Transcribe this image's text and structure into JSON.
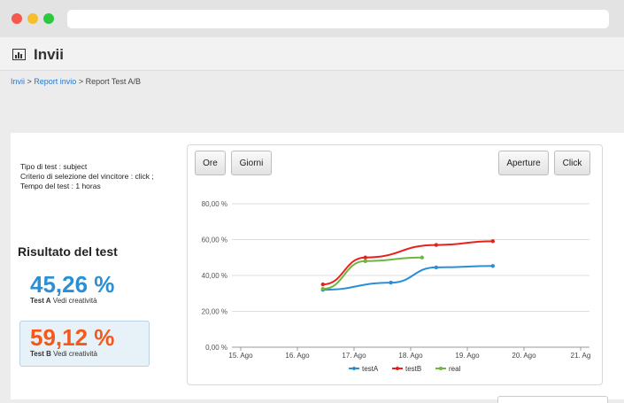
{
  "header": {
    "title": "Invii"
  },
  "breadcrumb": {
    "link1": "Invii",
    "sep1": " > ",
    "link2": "Report invio",
    "sep2": " > ",
    "current": "Report Test A/B"
  },
  "info": {
    "line1": "Tipo di test : subject",
    "line2": "Criterio di selezione del vincitore : click ;",
    "line3": "Tempo del test : 1 horas"
  },
  "result": {
    "title": "Risultato del test",
    "a": {
      "value": "45,26 %",
      "label": "Test A",
      "link": "Vedi creatività"
    },
    "b": {
      "value": "59,12 %",
      "label": "Test B",
      "link": "Vedi creatività"
    }
  },
  "buttons": {
    "ore": "Ore",
    "giorni": "Giorni",
    "aperture": "Aperture",
    "click": "Click"
  },
  "chart_data": {
    "type": "line",
    "x": [
      "15. Ago",
      "16. Ago",
      "17. Ago",
      "18. Ago",
      "19. Ago",
      "20. Ago",
      "21. Ag"
    ],
    "ylim": [
      0,
      80
    ],
    "yticks": [
      "0,00 %",
      "20,00 %",
      "40,00 %",
      "60,00 %",
      "80,00 %"
    ],
    "series": [
      {
        "name": "testA",
        "color": "#2b8fd6",
        "points": [
          [
            1.45,
            32
          ],
          [
            2.65,
            36
          ],
          [
            3.45,
            44.5
          ],
          [
            4.45,
            45.3
          ]
        ]
      },
      {
        "name": "testB",
        "color": "#e8211c",
        "points": [
          [
            1.45,
            35
          ],
          [
            2.2,
            50
          ],
          [
            3.45,
            57
          ],
          [
            4.45,
            59.1
          ]
        ]
      },
      {
        "name": "real",
        "color": "#71b43f",
        "points": [
          [
            1.45,
            32.5
          ],
          [
            2.2,
            48
          ],
          [
            3.2,
            50
          ]
        ]
      }
    ],
    "legend": "bottom"
  }
}
